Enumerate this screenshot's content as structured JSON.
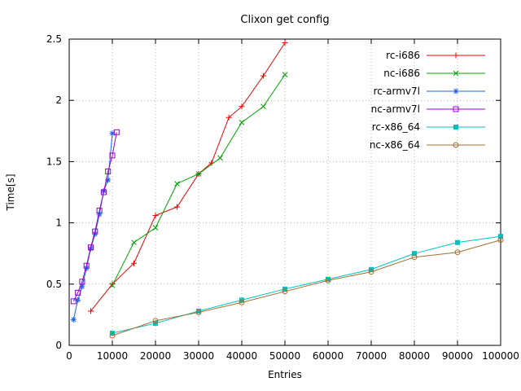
{
  "chart_data": {
    "type": "line",
    "title": "Clixon get config",
    "xlabel": "Entries",
    "ylabel": "Time[s]",
    "xlim": [
      0,
      100000
    ],
    "ylim": [
      0,
      2.5
    ],
    "xtick_values": [
      0,
      10000,
      20000,
      30000,
      40000,
      50000,
      60000,
      70000,
      80000,
      90000,
      100000
    ],
    "xtick_labels": [
      "0",
      "10000",
      "20000",
      "30000",
      "40000",
      "50000",
      "60000",
      "70000",
      "80000",
      "90000",
      "100000"
    ],
    "ytick_values": [
      0,
      0.5,
      1,
      1.5,
      2,
      2.5
    ],
    "ytick_labels": [
      "0",
      "0.5",
      "1",
      "1.5",
      "2",
      "2.5"
    ],
    "grid": "dotted",
    "legend_position": "top-right-inside",
    "colors": {
      "background": "#ffffff",
      "axis": "#000000",
      "grid": "#b4b4b4"
    },
    "series": [
      {
        "name": "rc-i686",
        "color": "#ee0000",
        "marker": "plus",
        "points": [
          [
            5000,
            0.28
          ],
          [
            10000,
            0.5
          ],
          [
            15000,
            0.67
          ],
          [
            20000,
            1.06
          ],
          [
            25000,
            1.13
          ],
          [
            30000,
            1.4
          ],
          [
            33000,
            1.49
          ],
          [
            37000,
            1.86
          ],
          [
            40000,
            1.95
          ],
          [
            45000,
            2.2
          ],
          [
            50000,
            2.47
          ]
        ]
      },
      {
        "name": "nc-i686",
        "color": "#00a000",
        "marker": "cross",
        "points": [
          [
            10000,
            0.49
          ],
          [
            15000,
            0.84
          ],
          [
            20000,
            0.96
          ],
          [
            25000,
            1.32
          ],
          [
            30000,
            1.4
          ],
          [
            35000,
            1.53
          ],
          [
            40000,
            1.82
          ],
          [
            45000,
            1.95
          ],
          [
            50000,
            2.21
          ]
        ]
      },
      {
        "name": "rc-armv7l",
        "color": "#2060e0",
        "marker": "asterisk",
        "points": [
          [
            1000,
            0.21
          ],
          [
            2000,
            0.37
          ],
          [
            3000,
            0.48
          ],
          [
            4000,
            0.63
          ],
          [
            5000,
            0.79
          ],
          [
            6000,
            0.91
          ],
          [
            7000,
            1.07
          ],
          [
            8000,
            1.26
          ],
          [
            9000,
            1.35
          ],
          [
            10000,
            1.73
          ]
        ]
      },
      {
        "name": "nc-armv7l",
        "color": "#9400d3",
        "marker": "square-open",
        "points": [
          [
            1000,
            0.36
          ],
          [
            2000,
            0.43
          ],
          [
            3000,
            0.52
          ],
          [
            4000,
            0.65
          ],
          [
            5000,
            0.8
          ],
          [
            6000,
            0.93
          ],
          [
            7000,
            1.1
          ],
          [
            8000,
            1.25
          ],
          [
            9000,
            1.42
          ],
          [
            10000,
            1.55
          ],
          [
            11000,
            1.74
          ]
        ]
      },
      {
        "name": "rc-x86_64",
        "color": "#00c0c0",
        "marker": "square-filled",
        "points": [
          [
            10000,
            0.1
          ],
          [
            20000,
            0.18
          ],
          [
            30000,
            0.28
          ],
          [
            40000,
            0.37
          ],
          [
            50000,
            0.46
          ],
          [
            60000,
            0.54
          ],
          [
            70000,
            0.62
          ],
          [
            80000,
            0.75
          ],
          [
            90000,
            0.84
          ],
          [
            100000,
            0.89
          ]
        ]
      },
      {
        "name": "nc-x86_64",
        "color": "#a07030",
        "marker": "circle-open",
        "points": [
          [
            10000,
            0.08
          ],
          [
            20000,
            0.2
          ],
          [
            30000,
            0.27
          ],
          [
            40000,
            0.35
          ],
          [
            50000,
            0.44
          ],
          [
            60000,
            0.53
          ],
          [
            70000,
            0.6
          ],
          [
            80000,
            0.72
          ],
          [
            90000,
            0.76
          ],
          [
            100000,
            0.86
          ]
        ]
      }
    ]
  }
}
